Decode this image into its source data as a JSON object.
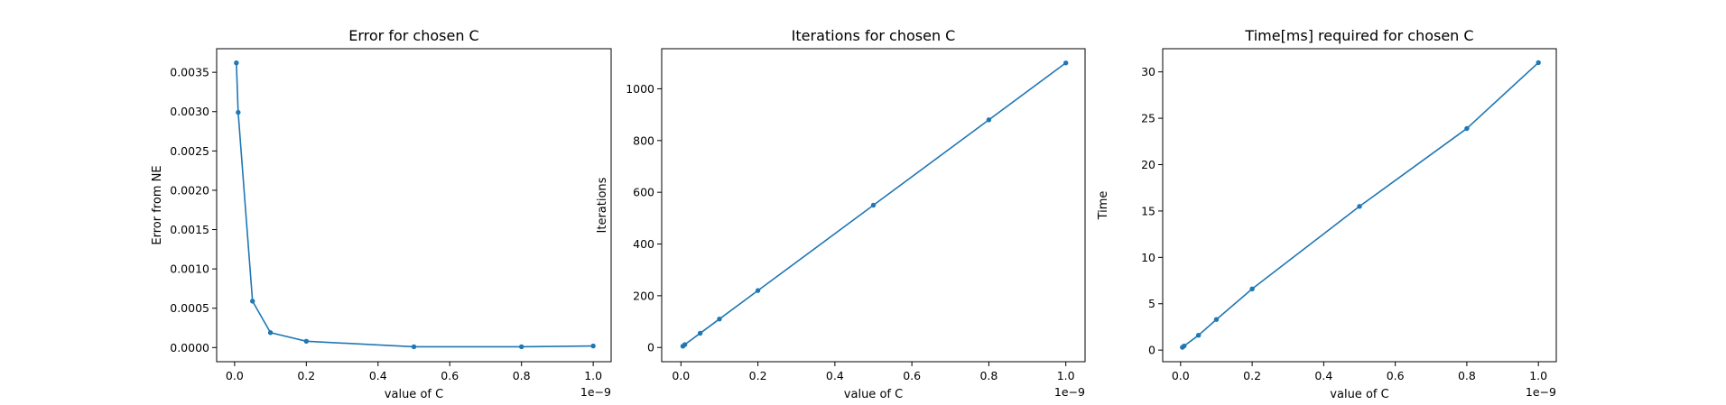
{
  "chart_data": [
    {
      "type": "line",
      "title": "Error for chosen C",
      "xlabel": "value of C",
      "ylabel": "Error from NE",
      "x_offset_text": "1e−9",
      "xlim": [
        -0.05,
        1.05
      ],
      "ylim": [
        -0.00018,
        0.0038
      ],
      "xticks": [
        0.0,
        0.2,
        0.4,
        0.6,
        0.8,
        1.0
      ],
      "xtick_labels": [
        "0.0",
        "0.2",
        "0.4",
        "0.6",
        "0.8",
        "1.0"
      ],
      "yticks": [
        0.0,
        0.0005,
        0.001,
        0.0015,
        0.002,
        0.0025,
        0.003,
        0.0035
      ],
      "ytick_labels": [
        "0.0000",
        "0.0005",
        "0.0010",
        "0.0015",
        "0.0020",
        "0.0025",
        "0.0030",
        "0.0035"
      ],
      "grid": false,
      "color": "#1f77b4",
      "series": [
        {
          "x": [
            0.005,
            0.01,
            0.05,
            0.1,
            0.2,
            0.5,
            0.8,
            1.0
          ],
          "y": [
            0.00362,
            0.00299,
            0.00059,
            0.00019,
            8e-05,
            1e-05,
            1e-05,
            2e-05
          ]
        }
      ]
    },
    {
      "type": "line",
      "title": "Iterations for chosen C",
      "xlabel": "value of C",
      "ylabel": "Iterations",
      "x_offset_text": "1e−9",
      "xlim": [
        -0.05,
        1.05
      ],
      "ylim": [
        -55,
        1155
      ],
      "xticks": [
        0.0,
        0.2,
        0.4,
        0.6,
        0.8,
        1.0
      ],
      "xtick_labels": [
        "0.0",
        "0.2",
        "0.4",
        "0.6",
        "0.8",
        "1.0"
      ],
      "yticks": [
        0,
        200,
        400,
        600,
        800,
        1000
      ],
      "ytick_labels": [
        "0",
        "200",
        "400",
        "600",
        "800",
        "1000"
      ],
      "grid": false,
      "color": "#1f77b4",
      "series": [
        {
          "x": [
            0.005,
            0.01,
            0.05,
            0.1,
            0.2,
            0.5,
            0.8,
            1.0
          ],
          "y": [
            5,
            11,
            55,
            110,
            220,
            550,
            880,
            1100
          ]
        }
      ]
    },
    {
      "type": "line",
      "title": "Time[ms] required for chosen C",
      "xlabel": "value of C",
      "ylabel": "Time",
      "x_offset_text": "1e−9",
      "xlim": [
        -0.05,
        1.05
      ],
      "ylim": [
        -1.25,
        32.5
      ],
      "xticks": [
        0.0,
        0.2,
        0.4,
        0.6,
        0.8,
        1.0
      ],
      "xtick_labels": [
        "0.0",
        "0.2",
        "0.4",
        "0.6",
        "0.8",
        "1.0"
      ],
      "yticks": [
        0,
        5,
        10,
        15,
        20,
        25,
        30
      ],
      "ytick_labels": [
        "0",
        "5",
        "10",
        "15",
        "20",
        "25",
        "30"
      ],
      "grid": false,
      "color": "#1f77b4",
      "series": [
        {
          "x": [
            0.005,
            0.01,
            0.05,
            0.1,
            0.2,
            0.5,
            0.8,
            1.0
          ],
          "y": [
            0.3,
            0.45,
            1.6,
            3.3,
            6.6,
            15.5,
            23.9,
            31.0
          ]
        }
      ]
    }
  ]
}
